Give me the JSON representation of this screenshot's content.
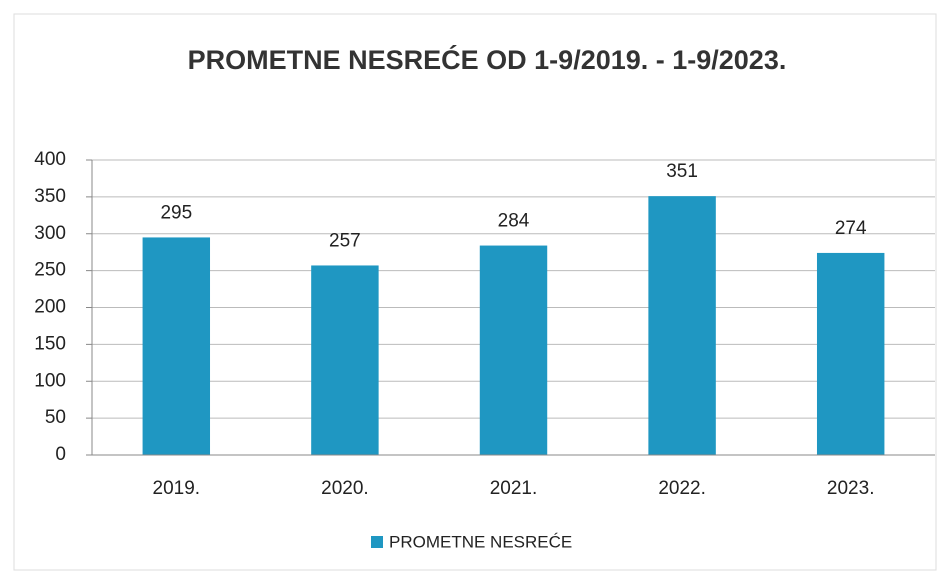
{
  "chart_data": {
    "type": "bar",
    "title": "PROMETNE NESREĆE OD 1-9/2019. - 1-9/2023.",
    "categories": [
      "2019.",
      "2020.",
      "2021.",
      "2022.",
      "2023."
    ],
    "series": [
      {
        "name": "PROMETNE NESREĆE",
        "color": "#1f97c2",
        "values": [
          295,
          257,
          284,
          351,
          274
        ]
      }
    ],
    "ylim": [
      0,
      400
    ],
    "yticks": [
      0,
      50,
      100,
      150,
      200,
      250,
      300,
      350,
      400
    ],
    "grid": true,
    "legend": "bottom"
  }
}
